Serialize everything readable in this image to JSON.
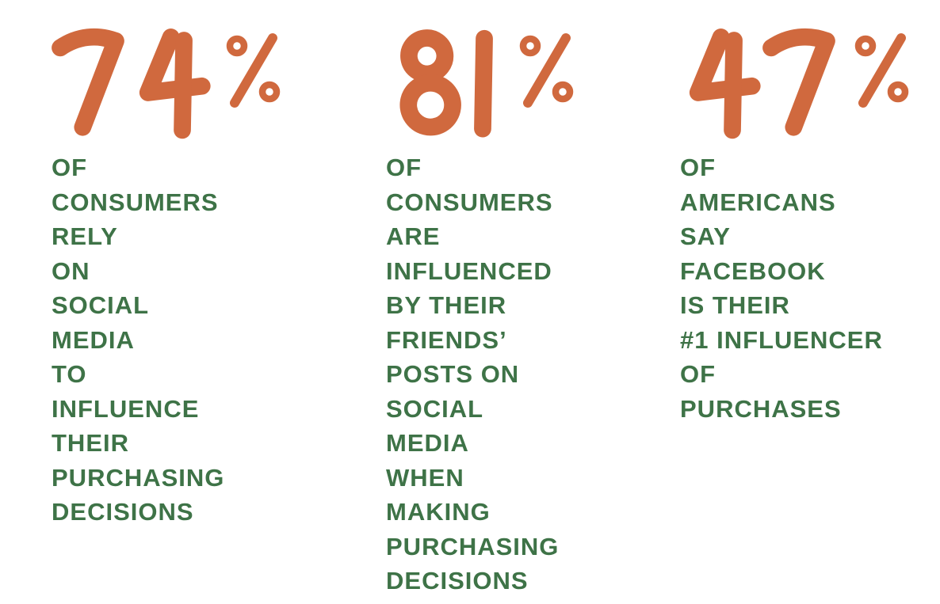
{
  "page": {
    "background": "#ffffff"
  },
  "colors": {
    "accent_orange": "#D0693E",
    "text_green": "#3E7347"
  },
  "stats": [
    {
      "value": "74",
      "unit": "%",
      "display": "74%",
      "lines": [
        "OF",
        "CONSUMERS",
        "RELY",
        "ON",
        "SOCIAL",
        "MEDIA",
        "TO",
        "INFLUENCE",
        "THEIR",
        "PURCHASING",
        "DECISIONS"
      ],
      "caption": "OF CONSUMERS RELY ON SOCIAL MEDIA TO INFLUENCE THEIR PURCHASING DECISIONS"
    },
    {
      "value": "81",
      "unit": "%",
      "display": "81%",
      "lines": [
        "OF",
        "CONSUMERS",
        "ARE",
        "INFLUENCED",
        "BY THEIR",
        "FRIENDS’",
        "POSTS ON",
        "SOCIAL",
        "MEDIA",
        "WHEN",
        "MAKING",
        "PURCHASING",
        "DECISIONS"
      ],
      "caption": "OF CONSUMERS ARE INFLUENCED BY THEIR FRIENDS’ POSTS ON SOCIAL MEDIA WHEN MAKING PURCHASING DECISIONS"
    },
    {
      "value": "47",
      "unit": "%",
      "display": "47%",
      "lines": [
        "OF",
        "AMERICANS",
        "SAY",
        "FACEBOOK",
        "IS THEIR",
        "#1 INFLUENCER",
        "OF",
        "PURCHASES"
      ],
      "caption": "OF AMERICANS SAY FACEBOOK IS THEIR #1 INFLUENCER OF PURCHASES"
    }
  ],
  "chart_data": {
    "type": "table",
    "title": "",
    "categories": [
      "OF CONSUMERS RELY ON SOCIAL MEDIA TO INFLUENCE THEIR PURCHASING DECISIONS",
      "OF CONSUMERS ARE INFLUENCED BY THEIR FRIENDS’ POSTS ON SOCIAL MEDIA WHEN MAKING PURCHASING DECISIONS",
      "OF AMERICANS SAY FACEBOOK IS THEIR #1 INFLUENCER OF PURCHASES"
    ],
    "values": [
      74,
      81,
      47
    ],
    "unit": "%",
    "legend": "none",
    "layout": "three stat columns, numbers top-aligned, captions one word-group per line"
  }
}
